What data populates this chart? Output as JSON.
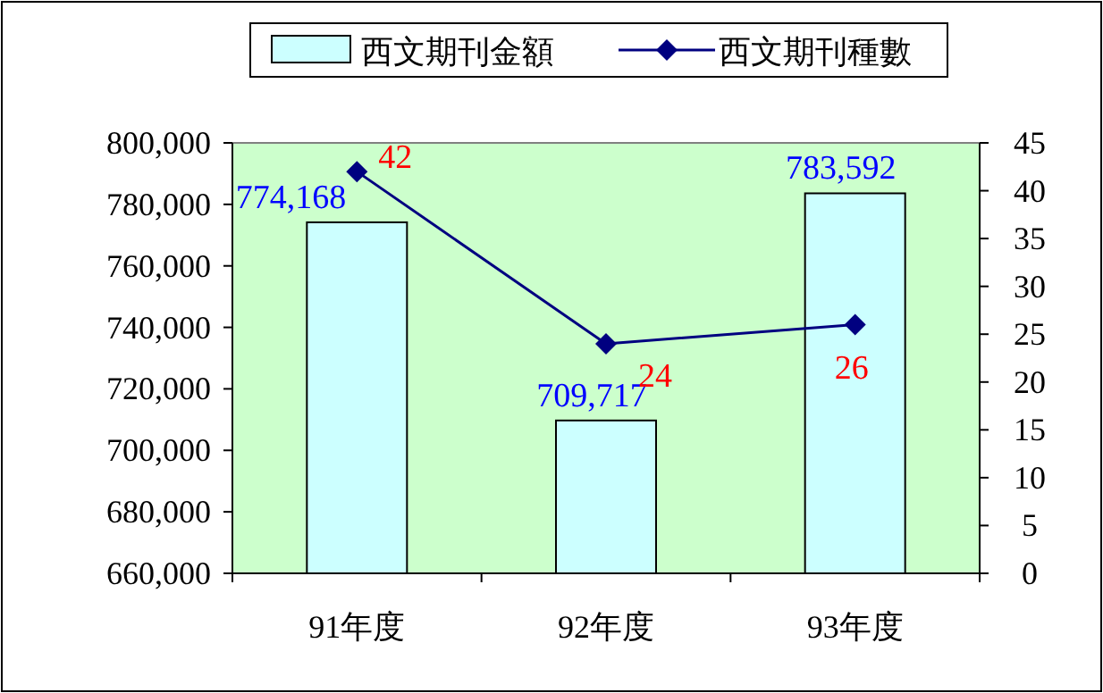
{
  "chart_data": {
    "type": "bar",
    "categories": [
      "91年度",
      "92年度",
      "93年度"
    ],
    "series": [
      {
        "name": "西文期刊金額",
        "color": "#ccffff",
        "values": [
          774168,
          709717,
          783592
        ],
        "value_labels": [
          "774,168",
          "709,717",
          "783,592"
        ]
      },
      {
        "name": "西文期刊種數",
        "type": "line",
        "axis": "y2",
        "color": "#000080",
        "marker": "diamond",
        "values": [
          42,
          24,
          26
        ],
        "value_labels": [
          "42",
          "24",
          "26"
        ]
      }
    ],
    "ylim": [
      660000,
      800000
    ],
    "yticks": [
      {
        "value": 660000,
        "label": "660,000"
      },
      {
        "value": 680000,
        "label": "680,000"
      },
      {
        "value": 700000,
        "label": "700,000"
      },
      {
        "value": 720000,
        "label": "720,000"
      },
      {
        "value": 740000,
        "label": "740,000"
      },
      {
        "value": 760000,
        "label": "760,000"
      },
      {
        "value": 780000,
        "label": "780,000"
      },
      {
        "value": 800000,
        "label": "800,000"
      }
    ],
    "y2lim": [
      0,
      45
    ],
    "y2ticks": [
      0,
      5,
      10,
      15,
      20,
      25,
      30,
      35,
      40,
      45
    ],
    "legend": "top"
  }
}
